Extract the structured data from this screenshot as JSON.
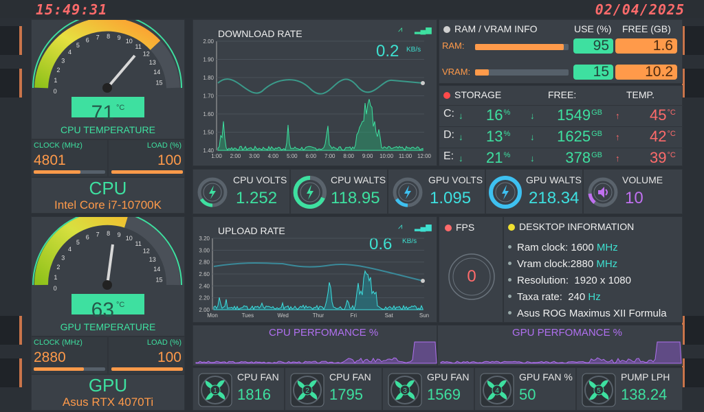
{
  "header": {
    "time": "15:49:31",
    "date": "02/04/2025"
  },
  "colors": {
    "accent_green": "#3ee0a0",
    "accent_orange": "#ff9a4a",
    "accent_red": "#ff6b6b",
    "accent_cyan": "#3ee0d0",
    "accent_purple": "#b070f0"
  },
  "cpu": {
    "gauge_ticks": [
      "0",
      "1",
      "2",
      "3",
      "4",
      "5",
      "6",
      "7",
      "8",
      "9",
      "10",
      "11",
      "12",
      "13",
      "14",
      "15"
    ],
    "temp": "71",
    "temp_unit": "°C",
    "temp_label": "CPU TEMPERATURE",
    "clock_label": "CLOCK (MHz)",
    "clock": "4801",
    "load_label": "LOAD (%)",
    "load": "100",
    "clock_fraction": 0.65,
    "load_fraction": 1.0,
    "name": "CPU",
    "model": "Intel Core i7-10700K"
  },
  "gpu": {
    "gauge_ticks": [
      "0",
      "1",
      "2",
      "3",
      "4",
      "5",
      "6",
      "7",
      "8",
      "9",
      "10",
      "11",
      "12",
      "13",
      "14",
      "15"
    ],
    "temp": "63",
    "temp_unit": "°C",
    "temp_label": "GPU TEMPERATURE",
    "clock_label": "CLOCK (MHz)",
    "clock": "2880",
    "load_label": "LOAD (%)",
    "load": "100",
    "clock_fraction": 0.7,
    "load_fraction": 1.0,
    "name": "GPU",
    "model": "Asus RTX 4070Ti"
  },
  "download": {
    "title": "DOWNLOAD RATE",
    "value": "0.2",
    "unit": "KB/s",
    "y_ticks": [
      "2.00",
      "1.90",
      "1.80",
      "1.70",
      "1.60",
      "1.50",
      "1.40"
    ],
    "x_ticks": [
      "1:00",
      "2:00",
      "3:00",
      "4:00",
      "5:00",
      "6:00",
      "7:00",
      "8:00",
      "9:00",
      "10:00",
      "11:00",
      "12:00"
    ]
  },
  "upload": {
    "title": "UPLOAD RATE",
    "value": "0.6",
    "unit": "KB/s",
    "y_ticks": [
      "3.20",
      "3.00",
      "2.80",
      "2.60",
      "2.40",
      "2.20",
      "2.00"
    ],
    "x_ticks": [
      "Mon",
      "Tues",
      "Wed",
      "Thur",
      "Fri",
      "Sat",
      "Sun"
    ]
  },
  "memory": {
    "title": "RAM / VRAM INFO",
    "use_label": "USE (%)",
    "free_label": "FREE (GB)",
    "ram_label": "RAM:",
    "ram_use": "95",
    "ram_free": "1.6",
    "ram_fraction": 0.95,
    "vram_label": "VRAM:",
    "vram_use": "15",
    "vram_free": "10.2",
    "vram_fraction": 0.15
  },
  "storage": {
    "title": "STORAGE",
    "free_label": "FREE:",
    "temp_label": "TEMP.",
    "drives": [
      {
        "name": "C:",
        "use": "16",
        "free": "1549",
        "temp": "45"
      },
      {
        "name": "D:",
        "use": "13",
        "free": "1625",
        "temp": "42"
      },
      {
        "name": "E:",
        "use": "21",
        "free": "378",
        "temp": "39"
      }
    ],
    "pct": "%",
    "gb": "GB",
    "deg": "°C"
  },
  "stats": {
    "cpu_volts_label": "CPU VOLTS",
    "cpu_volts": "1.252",
    "cpu_watts_label": "CPU WALTS",
    "cpu_watts": "118.95",
    "gpu_volts_label": "GPU VOLTS",
    "gpu_volts": "1.095",
    "gpu_watts_label": "GPU WALTS",
    "gpu_watts": "218.34",
    "volume_label": "VOLUME",
    "volume": "10"
  },
  "fps": {
    "title": "FPS",
    "value": "0"
  },
  "desktop": {
    "title": "DESKTOP INFORMATION",
    "ram_clock_label": "Ram clock:",
    "ram_clock": "1600",
    "ram_clock_unit": "MHz",
    "vram_clock_label": "Vram clock:",
    "vram_clock": "2880",
    "vram_clock_unit": "MHz",
    "resolution_label": "Resolution:",
    "resolution": "1920 x 1080",
    "refresh_label": "Taxa rate:",
    "refresh": "240",
    "refresh_unit": "Hz",
    "motherboard": "Asus ROG Maximus XII Formula"
  },
  "perf": {
    "cpu_title": "CPU PERFOMANCE %",
    "gpu_title": "GPU PERFOMANCE %"
  },
  "fans": [
    {
      "num": "1",
      "label": "CPU FAN",
      "value": "1816"
    },
    {
      "num": "2",
      "label": "CPU FAN",
      "value": "1795"
    },
    {
      "num": "3",
      "label": "GPU FAN",
      "value": "1569"
    },
    {
      "num": "4",
      "label": "GPU FAN %",
      "value": "50"
    },
    {
      "num": "5",
      "label": "PUMP LPH",
      "value": "138.24"
    }
  ]
}
